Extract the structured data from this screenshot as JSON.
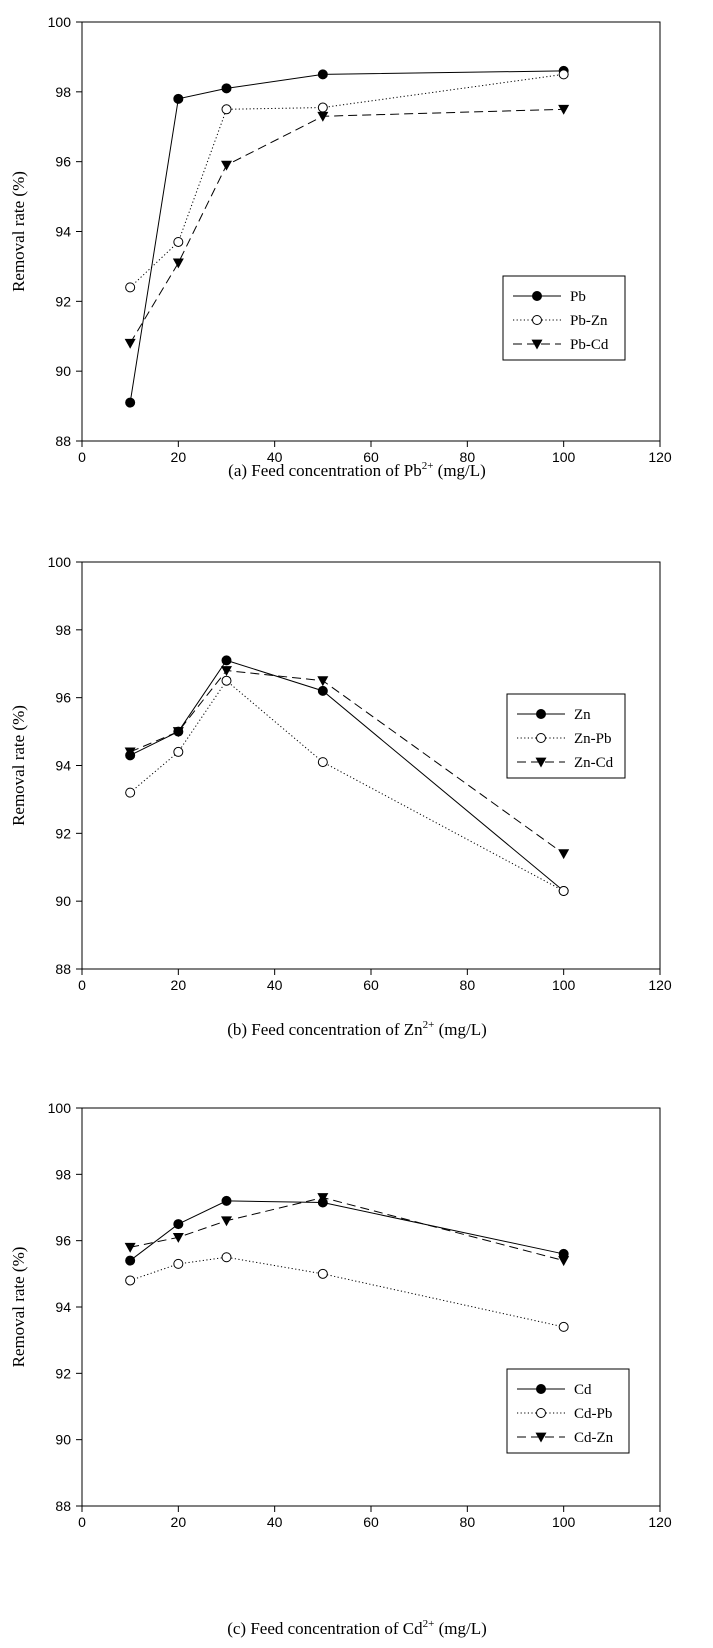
{
  "colors": {
    "ink": "#000000",
    "background": "#ffffff"
  },
  "chart_data": [
    {
      "type": "line",
      "xlabel_text": "(a) Feed concentration of Pb",
      "xlabel_sup": "2+",
      "xlabel_unit": "(mg/L)",
      "ylabel": "Removal rate (%)",
      "xlim": [
        0,
        120
      ],
      "ylim": [
        88,
        100
      ],
      "xticks": [
        "0",
        "20",
        "40",
        "60",
        "80",
        "100",
        "120"
      ],
      "yticks": [
        "88",
        "90",
        "92",
        "94",
        "96",
        "98",
        "100"
      ],
      "grid": false,
      "legend_position": "right",
      "x": [
        10,
        20,
        30,
        50,
        100
      ],
      "series": [
        {
          "name": "Pb",
          "line": "solid",
          "marker": "filled-circle",
          "values": [
            89.1,
            97.8,
            98.1,
            98.5,
            98.6
          ]
        },
        {
          "name": "Pb-Zn",
          "line": "dotted",
          "marker": "open-circle",
          "values": [
            92.4,
            93.7,
            97.5,
            97.55,
            98.5
          ]
        },
        {
          "name": "Pb-Cd",
          "line": "dashed",
          "marker": "filled-triangle-down",
          "values": [
            90.8,
            93.1,
            95.9,
            97.3,
            97.5
          ]
        }
      ]
    },
    {
      "type": "line",
      "xlabel_text": "(b) Feed concentration of Zn",
      "xlabel_sup": "2+",
      "xlabel_unit": "(mg/L)",
      "ylabel": "Removal rate (%)",
      "xlim": [
        0,
        120
      ],
      "ylim": [
        88,
        100
      ],
      "xticks": [
        "0",
        "20",
        "40",
        "60",
        "80",
        "100",
        "120"
      ],
      "yticks": [
        "88",
        "90",
        "92",
        "94",
        "96",
        "98",
        "100"
      ],
      "grid": false,
      "legend_position": "right",
      "x": [
        10,
        20,
        30,
        50,
        100
      ],
      "series": [
        {
          "name": "Zn",
          "line": "solid",
          "marker": "filled-circle",
          "values": [
            94.3,
            95.0,
            97.1,
            96.2,
            90.3
          ]
        },
        {
          "name": "Zn-Pb",
          "line": "dotted",
          "marker": "open-circle",
          "values": [
            93.2,
            94.4,
            96.5,
            94.1,
            90.3
          ]
        },
        {
          "name": "Zn-Cd",
          "line": "dashed",
          "marker": "filled-triangle-down",
          "values": [
            94.4,
            95.0,
            96.8,
            96.5,
            91.4
          ]
        }
      ]
    },
    {
      "type": "line",
      "xlabel_text": "(c) Feed concentration of Cd",
      "xlabel_sup": "2+",
      "xlabel_unit": "(mg/L)",
      "ylabel": "Removal rate (%)",
      "xlim": [
        0,
        120
      ],
      "ylim": [
        88,
        100
      ],
      "xticks": [
        "0",
        "20",
        "40",
        "60",
        "80",
        "100",
        "120"
      ],
      "yticks": [
        "88",
        "90",
        "92",
        "94",
        "96",
        "98",
        "100"
      ],
      "grid": false,
      "legend_position": "bottom-right",
      "x": [
        10,
        20,
        30,
        50,
        100
      ],
      "series": [
        {
          "name": "Cd",
          "line": "solid",
          "marker": "filled-circle",
          "values": [
            95.4,
            96.5,
            97.2,
            97.15,
            95.6
          ]
        },
        {
          "name": "Cd-Pb",
          "line": "dotted",
          "marker": "open-circle",
          "values": [
            94.8,
            95.3,
            95.5,
            95.0,
            93.4
          ]
        },
        {
          "name": "Cd-Zn",
          "line": "dashed",
          "marker": "filled-triangle-down",
          "values": [
            95.8,
            96.1,
            96.6,
            97.3,
            95.4
          ]
        }
      ]
    }
  ]
}
